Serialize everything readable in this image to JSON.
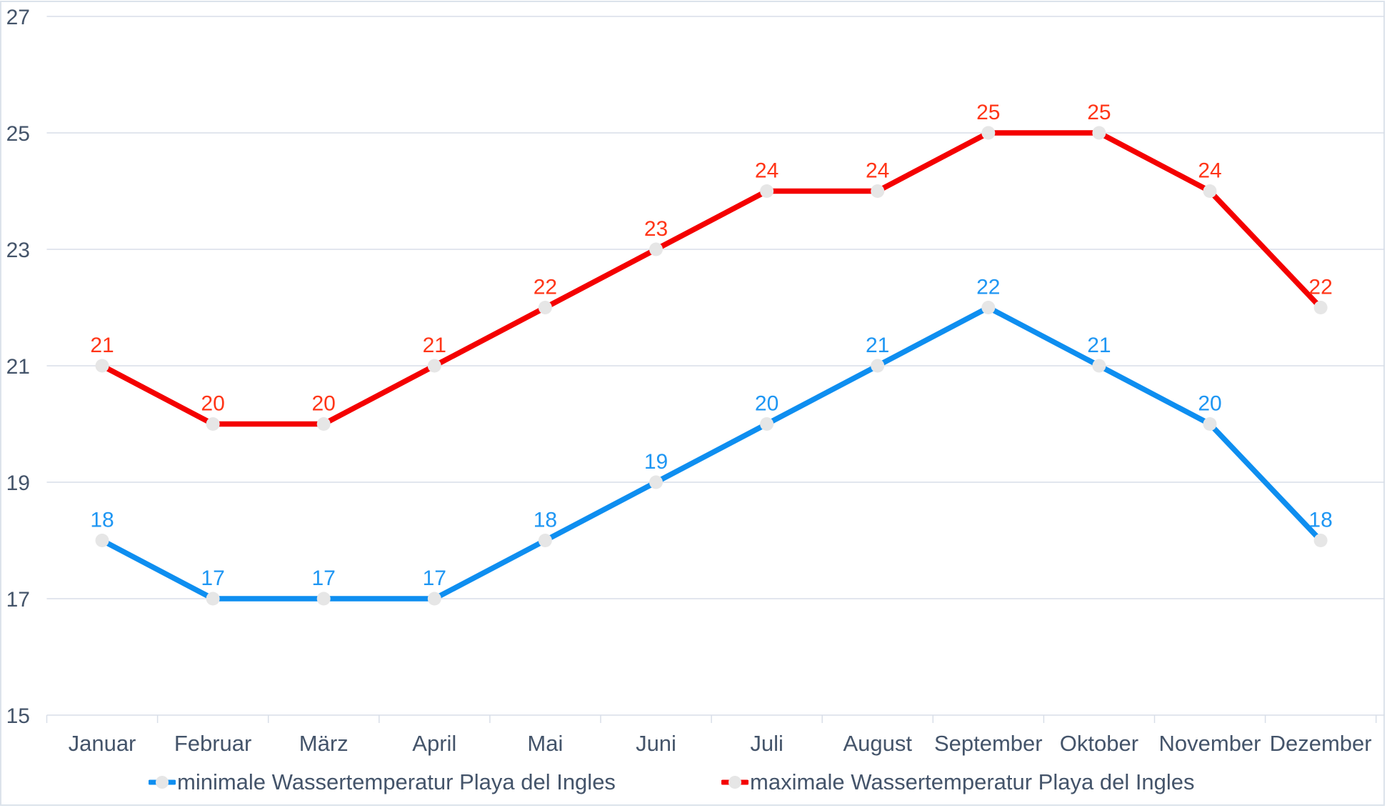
{
  "chart_data": {
    "type": "line",
    "title": "",
    "xlabel": "",
    "ylabel": "",
    "categories": [
      "Januar",
      "Februar",
      "März",
      "April",
      "Mai",
      "Juni",
      "Juli",
      "August",
      "September",
      "Oktober",
      "November",
      "Dezember"
    ],
    "series": [
      {
        "name": "minimale Wassertemperatur Playa del Ingles",
        "values": [
          18,
          17,
          17,
          17,
          18,
          19,
          20,
          21,
          22,
          21,
          20,
          18
        ],
        "color": "#0e8ef0",
        "label_color": "#1e96f3"
      },
      {
        "name": "maximale Wassertemperatur Playa del Ingles",
        "values": [
          21,
          20,
          20,
          21,
          22,
          23,
          24,
          24,
          25,
          25,
          24,
          22
        ],
        "color": "#f40000",
        "label_color": "#ff3517"
      }
    ],
    "ylim": [
      15,
      27
    ],
    "yticks": [
      15,
      17,
      19,
      21,
      23,
      25,
      27
    ],
    "grid": true,
    "data_labels": true,
    "legend_position": "bottom",
    "marker_color": "#e6e6e6",
    "axis_text_color": "#44546a",
    "grid_color": "#d8dee8",
    "border_color": "#dce3eb"
  }
}
